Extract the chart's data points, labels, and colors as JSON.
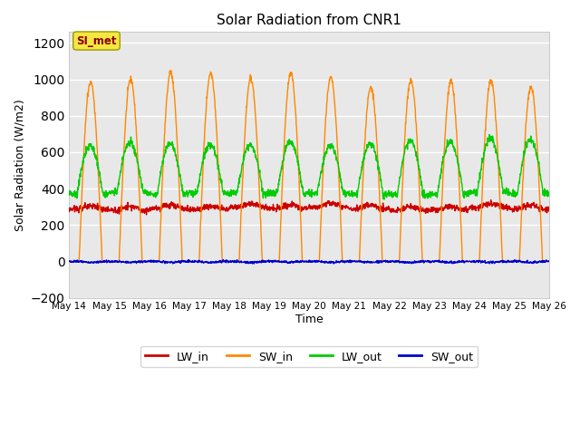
{
  "title": "Solar Radiation from CNR1",
  "xlabel": "Time",
  "ylabel": "Solar Radiation (W/m2)",
  "ylim": [
    -200,
    1260
  ],
  "yticks": [
    -200,
    0,
    200,
    400,
    600,
    800,
    1000,
    1200
  ],
  "fig_bg_color": "#ffffff",
  "plot_bg_color": "#e8e8e8",
  "grid_color": "#ffffff",
  "annotation_text": "SI_met",
  "annotation_color": "#8B0000",
  "annotation_bg": "#f5e642",
  "annotation_edge": "#999900",
  "series_colors": {
    "LW_in": "#cc0000",
    "SW_in": "#ff8800",
    "LW_out": "#00cc00",
    "SW_out": "#0000cc"
  },
  "x_tick_labels": [
    "May 14",
    "May 15",
    "May 16",
    "May 17",
    "May 18",
    "May 19",
    "May 20",
    "May 21",
    "May 22",
    "May 23",
    "May 24",
    "May 25",
    "May 26"
  ],
  "n_days": 12,
  "pts_per_day": 144
}
